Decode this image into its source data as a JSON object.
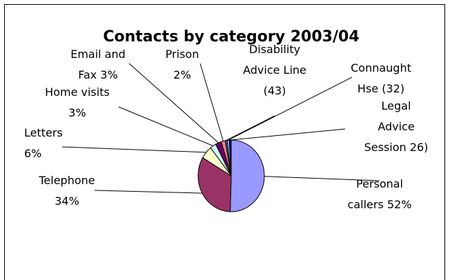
{
  "chart_data": {
    "type": "pie",
    "title": "Contacts by category 2003/04",
    "slices": [
      {
        "label": [
          "Personal",
          "callers 52%"
        ],
        "value": 52,
        "color": "#9999ff"
      },
      {
        "label": [
          "Telephone",
          "34%"
        ],
        "value": 34,
        "color": "#993366"
      },
      {
        "label": [
          "Letters",
          "6%"
        ],
        "value": 6,
        "color": "#ffffcc"
      },
      {
        "label": [
          "Home visits",
          "3%"
        ],
        "value": 3,
        "color": "#ccffff"
      },
      {
        "label": [
          "Email and",
          "Fax 3%"
        ],
        "value": 3,
        "color": "#660066"
      },
      {
        "label": [
          "Prison",
          "2%"
        ],
        "value": 2,
        "color": "#ff8080"
      },
      {
        "label": [
          "Disability",
          "Advice Line",
          "(43)"
        ],
        "value": 1,
        "color": "#0066cc"
      },
      {
        "label": [
          "Connaught",
          "Hse (32)"
        ],
        "value": 1,
        "color": "#ccccff"
      },
      {
        "label": [
          "Legal",
          "Advice",
          "Session 26)"
        ],
        "value": 1,
        "color": "#000080"
      }
    ]
  }
}
